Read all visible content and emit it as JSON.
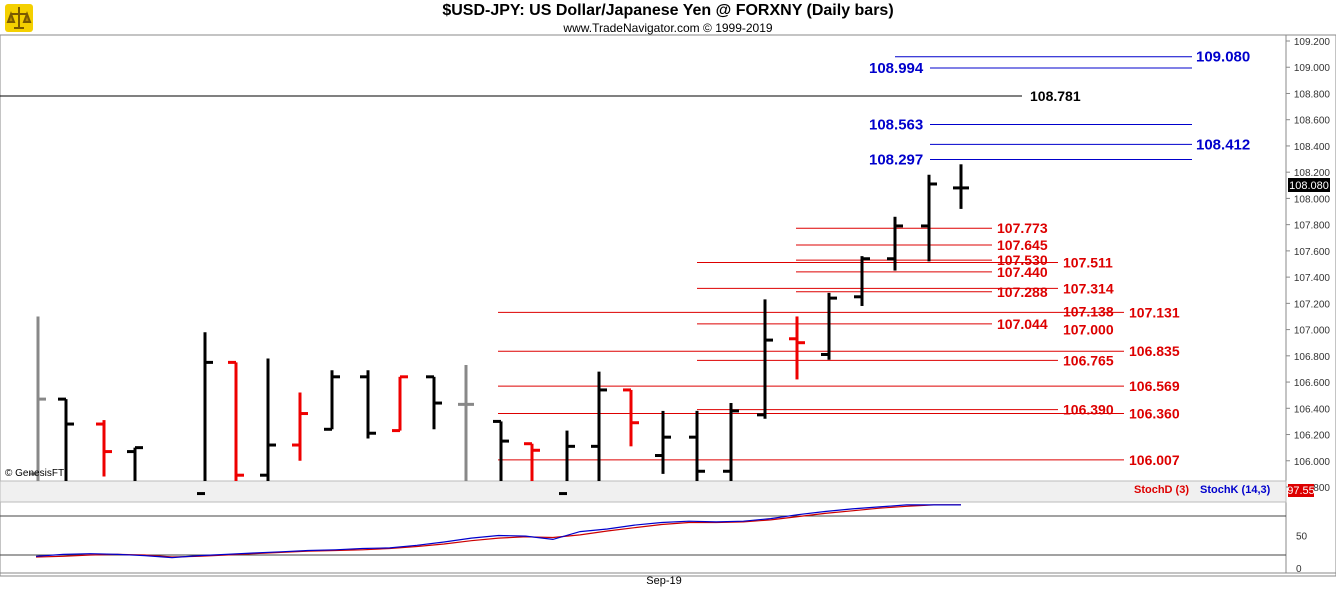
{
  "header": {
    "title": "$USD-JPY:  US Dollar/Japanese Yen @ FORXNY  (Daily bars)",
    "subtitle": "www.TradeNavigator.com © 1999-2019"
  },
  "credit": "© GenesisFT",
  "last_price_label": "108.080",
  "stoch_value_label": "97.55",
  "indicator_labels": {
    "stochd": "StochD (3)",
    "stochk": "StochK (14,3)"
  },
  "date_label": "Sep-19",
  "colors": {
    "up": "#000000",
    "down": "#ee0000",
    "neutral": "#888888",
    "blue_level": "#0000cc",
    "red_level": "#dd0000",
    "stochd": "#cc0000",
    "stochk": "#0000cc"
  },
  "chart_data": {
    "type": "ohlc",
    "title": "$USD-JPY:  US Dollar/Japanese Yen @ FORXNY  (Daily bars)",
    "price_axis": {
      "ylim": [
        105.8,
        109.2
      ],
      "ticks": [
        "109.200",
        "109.000",
        "108.800",
        "108.600",
        "108.400",
        "108.200",
        "108.000",
        "107.800",
        "107.600",
        "107.400",
        "107.200",
        "107.000",
        "106.800",
        "106.600",
        "106.400",
        "106.200",
        "106.000",
        "105.800"
      ],
      "tick_values": [
        109.2,
        109.0,
        108.8,
        108.6,
        108.4,
        108.2,
        108.0,
        107.8,
        107.6,
        107.4,
        107.2,
        107.0,
        106.8,
        106.6,
        106.4,
        106.2,
        106.0,
        105.8
      ]
    },
    "bars": [
      {
        "o": 105.9,
        "h": 107.1,
        "l": 105.75,
        "c": 106.47,
        "color": "neutral"
      },
      {
        "o": 106.47,
        "h": 106.47,
        "l": 105.75,
        "c": 106.28,
        "color": "up"
      },
      {
        "o": 106.28,
        "h": 106.31,
        "l": 105.88,
        "c": 106.07,
        "color": "down"
      },
      {
        "o": 106.07,
        "h": 106.1,
        "l": 105.75,
        "c": 106.1,
        "color": "up"
      },
      {
        "o": 105.75,
        "h": 106.98,
        "l": 105.75,
        "c": 106.75,
        "color": "up"
      },
      {
        "o": 106.75,
        "h": 106.75,
        "l": 105.75,
        "c": 105.89,
        "color": "down"
      },
      {
        "o": 105.89,
        "h": 106.78,
        "l": 105.75,
        "c": 106.12,
        "color": "up"
      },
      {
        "o": 106.12,
        "h": 106.52,
        "l": 106.0,
        "c": 106.36,
        "color": "down"
      },
      {
        "o": 106.24,
        "h": 106.69,
        "l": 106.24,
        "c": 106.64,
        "color": "up"
      },
      {
        "o": 106.64,
        "h": 106.69,
        "l": 106.17,
        "c": 106.21,
        "color": "up"
      },
      {
        "o": 106.23,
        "h": 106.64,
        "l": 106.23,
        "c": 106.64,
        "color": "down"
      },
      {
        "o": 106.64,
        "h": 106.64,
        "l": 106.24,
        "c": 106.44,
        "color": "up"
      },
      {
        "o": 106.43,
        "h": 106.73,
        "l": 105.75,
        "c": 106.43,
        "color": "neutral"
      },
      {
        "o": 106.3,
        "h": 106.3,
        "l": 105.75,
        "c": 106.15,
        "color": "up"
      },
      {
        "o": 106.13,
        "h": 106.13,
        "l": 105.78,
        "c": 106.08,
        "color": "down"
      },
      {
        "o": 105.75,
        "h": 106.23,
        "l": 105.75,
        "c": 106.11,
        "color": "up"
      },
      {
        "o": 106.11,
        "h": 106.68,
        "l": 105.75,
        "c": 106.54,
        "color": "up"
      },
      {
        "o": 106.54,
        "h": 106.54,
        "l": 106.11,
        "c": 106.29,
        "color": "down"
      },
      {
        "o": 106.04,
        "h": 106.38,
        "l": 105.9,
        "c": 106.18,
        "color": "up"
      },
      {
        "o": 106.18,
        "h": 106.38,
        "l": 105.75,
        "c": 105.92,
        "color": "up"
      },
      {
        "o": 105.92,
        "h": 106.44,
        "l": 105.8,
        "c": 106.38,
        "color": "up"
      },
      {
        "o": 106.35,
        "h": 107.23,
        "l": 106.32,
        "c": 106.92,
        "color": "up"
      },
      {
        "o": 106.93,
        "h": 107.1,
        "l": 106.62,
        "c": 106.9,
        "color": "down"
      },
      {
        "o": 106.81,
        "h": 107.28,
        "l": 106.77,
        "c": 107.24,
        "color": "up"
      },
      {
        "o": 107.25,
        "h": 107.56,
        "l": 107.18,
        "c": 107.54,
        "color": "up"
      },
      {
        "o": 107.54,
        "h": 107.86,
        "l": 107.45,
        "c": 107.79,
        "color": "up"
      },
      {
        "o": 107.79,
        "h": 108.18,
        "l": 107.52,
        "c": 108.11,
        "color": "up"
      },
      {
        "o": 108.08,
        "h": 108.26,
        "l": 107.92,
        "c": 108.08,
        "color": "up"
      }
    ],
    "levels": [
      {
        "label": "109.080",
        "value": 109.08,
        "color": "blue"
      },
      {
        "label": "108.994",
        "value": 108.994,
        "color": "blue"
      },
      {
        "label": "108.781",
        "value": 108.781,
        "color": "black"
      },
      {
        "label": "108.563",
        "value": 108.563,
        "color": "blue"
      },
      {
        "label": "108.412",
        "value": 108.412,
        "color": "blue"
      },
      {
        "label": "108.297",
        "value": 108.297,
        "color": "blue"
      },
      {
        "label": "107.773",
        "value": 107.773,
        "color": "red"
      },
      {
        "label": "107.645",
        "value": 107.645,
        "color": "red"
      },
      {
        "label": "107.530",
        "value": 107.53,
        "color": "red"
      },
      {
        "label": "107.511",
        "value": 107.511,
        "color": "red"
      },
      {
        "label": "107.440",
        "value": 107.44,
        "color": "red"
      },
      {
        "label": "107.314",
        "value": 107.314,
        "color": "red"
      },
      {
        "label": "107.288",
        "value": 107.288,
        "color": "red"
      },
      {
        "label": "107.138",
        "value": 107.138,
        "color": "red"
      },
      {
        "label": "107.131",
        "value": 107.131,
        "color": "red"
      },
      {
        "label": "107.044",
        "value": 107.044,
        "color": "red"
      },
      {
        "label": "107.000",
        "value": 107.0,
        "color": "red"
      },
      {
        "label": "106.835",
        "value": 106.835,
        "color": "red"
      },
      {
        "label": "106.765",
        "value": 106.765,
        "color": "red"
      },
      {
        "label": "106.569",
        "value": 106.569,
        "color": "red"
      },
      {
        "label": "106.390",
        "value": 106.39,
        "color": "red"
      },
      {
        "label": "106.360",
        "value": 106.36,
        "color": "red"
      },
      {
        "label": "106.007",
        "value": 106.007,
        "color": "red"
      }
    ],
    "stochastic": {
      "ylim": [
        0,
        100
      ],
      "ticks": [
        "50",
        "0"
      ],
      "tick_values": [
        50,
        0
      ],
      "guide_levels": [
        80,
        20
      ],
      "stochK": [
        18,
        21,
        22,
        21,
        19,
        16,
        19,
        21,
        23,
        25,
        27,
        28,
        30,
        31,
        35,
        40,
        46,
        50,
        49,
        44,
        56,
        60,
        66,
        70,
        72,
        71,
        72,
        76,
        82,
        87,
        91,
        94,
        97,
        97,
        97
      ],
      "stochD": [
        17,
        18,
        20,
        21,
        20,
        17,
        18,
        20,
        22,
        24,
        26,
        27,
        28,
        30,
        33,
        37,
        42,
        46,
        48,
        47,
        51,
        57,
        62,
        67,
        70,
        70,
        71,
        74,
        79,
        84,
        88,
        92,
        95,
        97,
        97
      ]
    }
  }
}
